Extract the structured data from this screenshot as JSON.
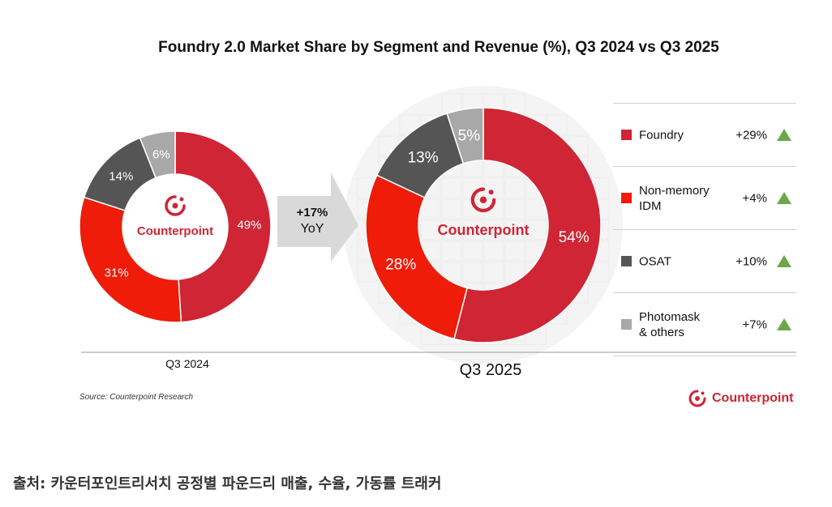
{
  "chart_data": {
    "type": "donut",
    "title": "Foundry 2.0 Market Share by Segment and Revenue (%), Q3 2024 vs Q3 2025",
    "categories": [
      "Foundry",
      "Non-memory IDM",
      "OSAT",
      "Photomask & others"
    ],
    "series": [
      {
        "name": "Q3 2024",
        "values": [
          49,
          31,
          14,
          6
        ]
      },
      {
        "name": "Q3 2025",
        "values": [
          54,
          28,
          13,
          5
        ]
      }
    ],
    "yoy_label": "+17%",
    "yoy_sublabel": "YoY",
    "legend": [
      {
        "label_lines": [
          "Foundry"
        ],
        "change": "+29%",
        "color": "#cf2535"
      },
      {
        "label_lines": [
          "Non-memory",
          "IDM"
        ],
        "change": "+4%",
        "color": "#ee1c09"
      },
      {
        "label_lines": [
          "OSAT"
        ],
        "change": "+10%",
        "color": "#555555"
      },
      {
        "label_lines": [
          "Photomask",
          "& others"
        ],
        "change": "+7%",
        "color": "#a8a8a8"
      }
    ],
    "center_logo_text": "Counterpoint"
  },
  "source": "Source: Counterpoint Research",
  "brand": "Counterpoint",
  "caption": "출처: 카운터포인트리서치 공정별 파운드리 매출, 수율, 가동률 트래커"
}
